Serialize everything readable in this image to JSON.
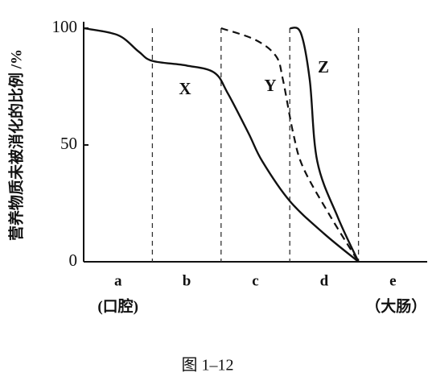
{
  "chart_data": {
    "type": "line",
    "title": "图 1–12",
    "y_label": "营养物质未被消化的比例 /%",
    "categories": [
      "a",
      "b",
      "c",
      "d",
      "e"
    ],
    "category_notes": [
      "(口腔)",
      null,
      null,
      null,
      "（大肠）"
    ],
    "xlim": [
      0,
      5
    ],
    "ylim": [
      0,
      100
    ],
    "yticks": [
      0,
      50,
      100
    ],
    "series": [
      {
        "name": "X",
        "color": "#111111",
        "dashed": false,
        "x": [
          0,
          0.5,
          0.8,
          1.0,
          1.5,
          1.9,
          2.1,
          2.4,
          2.6,
          3.0,
          3.5,
          4.0
        ],
        "values": [
          100,
          97,
          90,
          86,
          84,
          81,
          72,
          55,
          43,
          26,
          12,
          0
        ]
      },
      {
        "name": "Y",
        "color": "#111111",
        "dashed": true,
        "x": [
          2.0,
          2.5,
          2.8,
          2.9,
          3.05,
          3.2,
          3.6,
          4.0
        ],
        "values": [
          100,
          95,
          88,
          78,
          55,
          40,
          19,
          0
        ]
      },
      {
        "name": "Z",
        "color": "#111111",
        "dashed": false,
        "x": [
          3.0,
          3.16,
          3.29,
          3.4,
          3.7,
          4.0
        ],
        "values": [
          100,
          98,
          78,
          43,
          19,
          0
        ]
      }
    ]
  }
}
